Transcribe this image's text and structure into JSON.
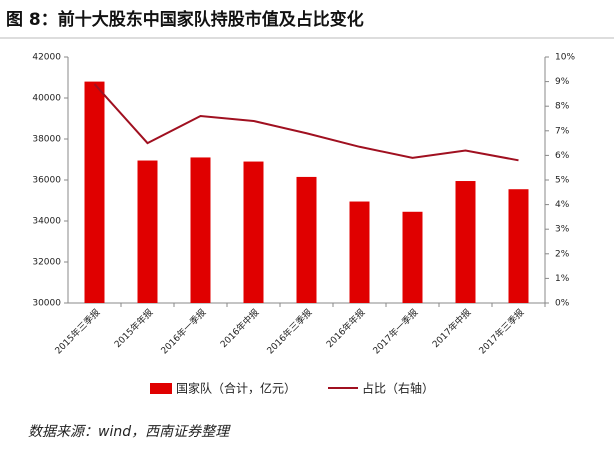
{
  "chart_data": {
    "type": "bar",
    "title": "图 8：前十大股东中国家队持股市值及占比变化",
    "categories": [
      "2015年三季报",
      "2015年年报",
      "2016年一季报",
      "2016年中报",
      "2016年三季报",
      "2016年年报",
      "2017年一季报",
      "2017年中报",
      "2017年三季报"
    ],
    "series": [
      {
        "name": "国家队（合计，亿元）",
        "type": "bar",
        "color": "#e00000",
        "values": [
          40800,
          36950,
          37100,
          36900,
          36150,
          34950,
          34450,
          35950,
          35550
        ]
      },
      {
        "name": "占比（右轴）",
        "type": "line",
        "axis": "y2",
        "color": "#a01020",
        "values": [
          8.9,
          6.5,
          7.6,
          7.4,
          6.9,
          6.35,
          5.9,
          6.2,
          5.8
        ]
      }
    ],
    "ylim": [
      30000,
      42000
    ],
    "yticks": [
      30000,
      32000,
      34000,
      36000,
      38000,
      40000,
      42000
    ],
    "y2lim": [
      0,
      10
    ],
    "y2ticks": [
      {
        "value": 0,
        "label": "0%"
      },
      {
        "value": 1,
        "label": "1%"
      },
      {
        "value": 2,
        "label": "2%"
      },
      {
        "value": 3,
        "label": "3%"
      },
      {
        "value": 4,
        "label": "4%"
      },
      {
        "value": 5,
        "label": "5%"
      },
      {
        "value": 6,
        "label": "6%"
      },
      {
        "value": 7,
        "label": "7%"
      },
      {
        "value": 8,
        "label": "8%"
      },
      {
        "value": 9,
        "label": "9%"
      },
      {
        "value": 10,
        "label": "10%"
      }
    ],
    "source": "数据来源：wind，西南证券整理"
  }
}
